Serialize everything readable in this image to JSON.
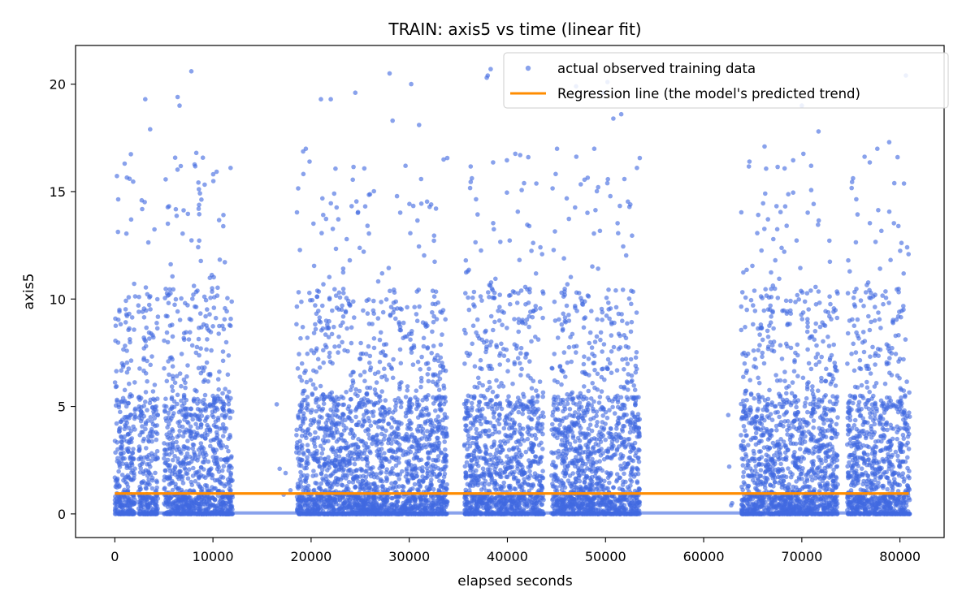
{
  "chart_data": {
    "type": "scatter",
    "title": "TRAIN: axis5 vs time (linear fit)",
    "xlabel": "elapsed seconds",
    "ylabel": "axis5",
    "xlim": [
      -4000,
      84500
    ],
    "ylim": [
      -1.1,
      21.8
    ],
    "x_ticks": [
      0,
      10000,
      20000,
      30000,
      40000,
      50000,
      60000,
      70000,
      80000
    ],
    "y_ticks": [
      0,
      5,
      10,
      15,
      20
    ],
    "grid": false,
    "legend_position": "top-right",
    "series": [
      {
        "name": "actual observed training data",
        "kind": "scatter",
        "color": "#4169e1",
        "segments": [
          {
            "x_start": 0,
            "x_end": 2100
          },
          {
            "x_start": 2400,
            "x_end": 4400
          },
          {
            "x_start": 5000,
            "x_end": 12000
          },
          {
            "x_start": 18500,
            "x_end": 33900
          },
          {
            "x_start": 35600,
            "x_end": 43700
          },
          {
            "x_start": 44500,
            "x_end": 53500
          },
          {
            "x_start": 63800,
            "x_end": 73700
          },
          {
            "x_start": 74600,
            "x_end": 81000
          }
        ],
        "points": [
          {
            "x": 16500,
            "y": 5.1
          },
          {
            "x": 16800,
            "y": 2.1
          },
          {
            "x": 17400,
            "y": 1.9
          },
          {
            "x": 17200,
            "y": 0.9
          },
          {
            "x": 17900,
            "y": 1.1
          },
          {
            "x": 62500,
            "y": 4.6
          },
          {
            "x": 62600,
            "y": 2.2
          },
          {
            "x": 62800,
            "y": 0.4
          },
          {
            "x": 62900,
            "y": 0.5
          },
          {
            "x": 7800,
            "y": 20.6
          },
          {
            "x": 3100,
            "y": 19.3
          },
          {
            "x": 6400,
            "y": 19.4
          },
          {
            "x": 6600,
            "y": 19.0
          },
          {
            "x": 28000,
            "y": 20.5
          },
          {
            "x": 30200,
            "y": 20.0
          },
          {
            "x": 38000,
            "y": 20.4
          },
          {
            "x": 38300,
            "y": 20.7
          },
          {
            "x": 37900,
            "y": 20.3
          },
          {
            "x": 50200,
            "y": 20.1
          },
          {
            "x": 49800,
            "y": 19.6
          },
          {
            "x": 80600,
            "y": 20.4
          },
          {
            "x": 21000,
            "y": 19.3
          },
          {
            "x": 22000,
            "y": 19.3
          },
          {
            "x": 24500,
            "y": 19.6
          },
          {
            "x": 50800,
            "y": 18.4
          },
          {
            "x": 51600,
            "y": 18.6
          },
          {
            "x": 47000,
            "y": 19.9
          },
          {
            "x": 70000,
            "y": 19.0
          },
          {
            "x": 31000,
            "y": 18.1
          },
          {
            "x": 28300,
            "y": 18.3
          },
          {
            "x": 71700,
            "y": 17.8
          },
          {
            "x": 78900,
            "y": 17.3
          },
          {
            "x": 66200,
            "y": 17.1
          },
          {
            "x": 8300,
            "y": 16.8
          },
          {
            "x": 1000,
            "y": 16.3
          },
          {
            "x": 41300,
            "y": 16.7
          },
          {
            "x": 53200,
            "y": 16.1
          },
          {
            "x": 11800,
            "y": 16.1
          },
          {
            "x": 3600,
            "y": 17.9
          }
        ],
        "approx_point_count": 9000
      },
      {
        "name": "Regression line (the model's predicted trend)",
        "kind": "line",
        "color": "#ff8c00",
        "x": [
          0,
          80900
        ],
        "y": [
          0.95,
          0.95
        ]
      }
    ]
  }
}
